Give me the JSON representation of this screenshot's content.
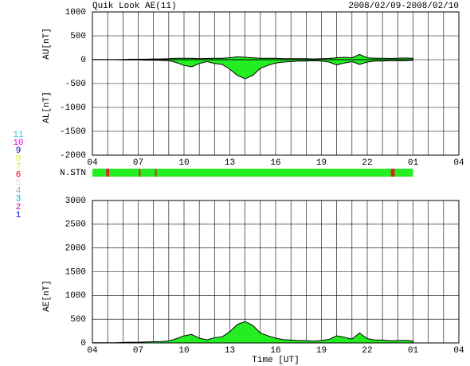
{
  "chart_data": [
    {
      "type": "area",
      "title": "Quik Look AE(11)",
      "subtitle": "2008/02/09-2008/02/10",
      "ylabels": [
        "AU[nT]",
        "AL[nT]"
      ],
      "x": [
        4,
        4.5,
        5,
        5.5,
        6,
        6.5,
        7,
        7.5,
        8,
        8.5,
        9,
        9.5,
        10,
        10.5,
        11,
        11.5,
        12,
        12.5,
        13,
        13.5,
        14,
        14.5,
        15,
        15.5,
        16,
        16.5,
        17,
        17.5,
        18,
        18.5,
        19,
        19.5,
        20,
        20.5,
        21,
        21.5,
        22,
        22.5,
        23,
        23.5,
        24,
        24.5,
        25
      ],
      "series": [
        {
          "color": "#22ee22",
          "line_color": "#000000",
          "values": [
            5,
            5,
            5,
            5,
            5,
            10,
            10,
            10,
            15,
            15,
            20,
            30,
            30,
            30,
            20,
            25,
            30,
            30,
            40,
            60,
            50,
            40,
            30,
            30,
            30,
            20,
            20,
            20,
            20,
            15,
            20,
            25,
            40,
            50,
            40,
            110,
            40,
            30,
            30,
            25,
            30,
            35,
            30
          ]
        },
        {
          "color": "#22ee22",
          "line_color": "#000000",
          "values": [
            0,
            0,
            0,
            0,
            -5,
            -5,
            -5,
            -10,
            -10,
            -15,
            -20,
            -60,
            -120,
            -150,
            -80,
            -40,
            -80,
            -100,
            -200,
            -330,
            -400,
            -330,
            -180,
            -120,
            -70,
            -50,
            -40,
            -30,
            -30,
            -20,
            -30,
            -50,
            -110,
            -70,
            -40,
            -100,
            -50,
            -30,
            -30,
            -20,
            -20,
            -20,
            -10
          ]
        }
      ],
      "xlim": [
        4,
        28
      ],
      "xticks": [
        {
          "value": 4,
          "label": "04"
        },
        {
          "value": 7,
          "label": "07"
        },
        10,
        13,
        16,
        19,
        22,
        {
          "value": 25,
          "label": "01"
        },
        {
          "value": 28,
          "label": "04"
        }
      ],
      "xminorticks": [
        4,
        5,
        6,
        7,
        8,
        9,
        10,
        11,
        12,
        13,
        14,
        15,
        16,
        17,
        18,
        19,
        20,
        21,
        22,
        23,
        24,
        25,
        26,
        27,
        28
      ],
      "ylim": [
        -2000,
        1000
      ],
      "yticks": [
        1000,
        500,
        0,
        -500,
        -1000,
        -1500,
        -2000
      ],
      "grid": true
    },
    {
      "type": "timeline",
      "label": "N.STN",
      "xlim": [
        4,
        28
      ],
      "segments": [
        {
          "start": 4,
          "end": 25,
          "color": "#22ee22"
        },
        {
          "start": 4.9,
          "end": 5.1,
          "color": "#dd2222"
        },
        {
          "start": 7.05,
          "end": 7.15,
          "color": "#dd2222"
        },
        {
          "start": 8.1,
          "end": 8.2,
          "color": "#dd2222"
        },
        {
          "start": 23.55,
          "end": 23.8,
          "color": "#dd2222"
        }
      ],
      "legend": [
        {
          "label": "11",
          "color": "#33cccc"
        },
        {
          "label": "10",
          "color": "#ff00ff"
        },
        {
          "label": "9",
          "color": "#000099"
        },
        {
          "label": "8",
          "color": "#eeee00"
        },
        {
          "label": "7",
          "color": "#bbee66"
        },
        {
          "label": "6",
          "color": "#ee0000"
        },
        {
          "label": "5",
          "color": "#dddddd"
        },
        {
          "label": "4",
          "color": "#aaaaaa"
        },
        {
          "label": "3",
          "color": "#00aaaa"
        },
        {
          "label": "2",
          "color": "#aa00aa"
        },
        {
          "label": "1",
          "color": "#0000ee"
        }
      ]
    },
    {
      "type": "area",
      "ylabels": [
        "AE[nT]"
      ],
      "xlabel": "Time [UT]",
      "x": [
        4,
        4.5,
        5,
        5.5,
        6,
        6.5,
        7,
        7.5,
        8,
        8.5,
        9,
        9.5,
        10,
        10.5,
        11,
        11.5,
        12,
        12.5,
        13,
        13.5,
        14,
        14.5,
        15,
        15.5,
        16,
        16.5,
        17,
        17.5,
        18,
        18.5,
        19,
        19.5,
        20,
        20.5,
        21,
        21.5,
        22,
        22.5,
        23,
        23.5,
        24,
        24.5,
        25
      ],
      "series": [
        {
          "color": "#22ee22",
          "line_color": "#000000",
          "values": [
            5,
            5,
            5,
            5,
            10,
            15,
            15,
            20,
            25,
            30,
            40,
            90,
            150,
            180,
            100,
            65,
            110,
            130,
            240,
            390,
            450,
            370,
            210,
            150,
            100,
            70,
            60,
            50,
            50,
            35,
            50,
            75,
            150,
            120,
            80,
            210,
            90,
            60,
            60,
            45,
            50,
            55,
            40
          ]
        }
      ],
      "xlim": [
        4,
        28
      ],
      "xticks": [
        {
          "value": 4,
          "label": "04"
        },
        {
          "value": 7,
          "label": "07"
        },
        10,
        13,
        16,
        19,
        22,
        {
          "value": 25,
          "label": "01"
        },
        {
          "value": 28,
          "label": "04"
        }
      ],
      "xminorticks": [
        4,
        5,
        6,
        7,
        8,
        9,
        10,
        11,
        12,
        13,
        14,
        15,
        16,
        17,
        18,
        19,
        20,
        21,
        22,
        23,
        24,
        25,
        26,
        27,
        28
      ],
      "ylim": [
        0,
        3000
      ],
      "yticks": [
        3000,
        2500,
        2000,
        1500,
        1000,
        500,
        0
      ],
      "grid": true
    }
  ]
}
